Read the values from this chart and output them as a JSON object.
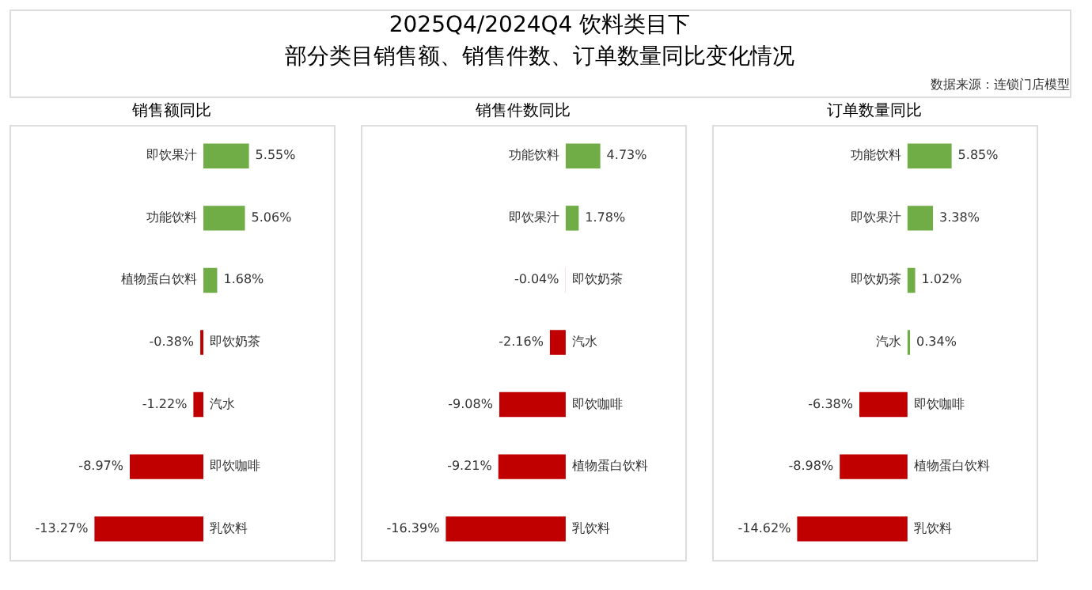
{
  "chart_data": [
    {
      "type": "other",
      "title": "2025Q4/2024Q4 饮料类目下",
      "subtitle": "部分类目销售额、销售件数、订单数量同比变化情况",
      "annotations": [
        "数据来源：连锁门店模型"
      ]
    },
    {
      "type": "bar",
      "orientation": "horizontal",
      "title": "销售额同比",
      "categories": [
        "即饮果汁",
        "功能饮料",
        "植物蛋白饮料",
        "即饮奶茶",
        "汽水",
        "即饮咖啡",
        "乳饮料"
      ],
      "values": [
        5.55,
        5.06,
        1.68,
        -0.38,
        -1.22,
        -8.97,
        -13.27
      ],
      "colors": [
        "#70ad47",
        "#70ad47",
        "#70ad47",
        "#c00000",
        "#c00000",
        "#c00000",
        "#c00000"
      ],
      "value_labels": [
        "5.55%",
        "5.06%",
        "1.68%",
        "-0.38%",
        "-1.22%",
        "-8.97%",
        "-13.27%"
      ]
    },
    {
      "type": "bar",
      "orientation": "horizontal",
      "title": "销售件数同比",
      "categories": [
        "功能饮料",
        "即饮果汁",
        "即饮奶茶",
        "汽水",
        "即饮咖啡",
        "植物蛋白饮料",
        "乳饮料"
      ],
      "values": [
        4.73,
        1.78,
        -0.04,
        -2.16,
        -9.08,
        -9.21,
        -16.39
      ],
      "colors": [
        "#70ad47",
        "#70ad47",
        "#f4b0b0",
        "#c00000",
        "#c00000",
        "#c00000",
        "#c00000"
      ],
      "value_labels": [
        "4.73%",
        "1.78%",
        "-0.04%",
        "-2.16%",
        "-9.08%",
        "-9.21%",
        "-16.39%"
      ]
    },
    {
      "type": "bar",
      "orientation": "horizontal",
      "title": "订单数量同比",
      "categories": [
        "功能饮料",
        "即饮果汁",
        "即饮奶茶",
        "汽水",
        "即饮咖啡",
        "植物蛋白饮料",
        "乳饮料"
      ],
      "values": [
        5.85,
        3.38,
        1.02,
        0.34,
        -6.38,
        -8.98,
        -14.62
      ],
      "colors": [
        "#70ad47",
        "#70ad47",
        "#70ad47",
        "#70ad47",
        "#c00000",
        "#c00000",
        "#c00000"
      ],
      "value_labels": [
        "5.85%",
        "3.38%",
        "1.02%",
        "0.34%",
        "-6.38%",
        "-8.98%",
        "-14.62%"
      ]
    }
  ]
}
